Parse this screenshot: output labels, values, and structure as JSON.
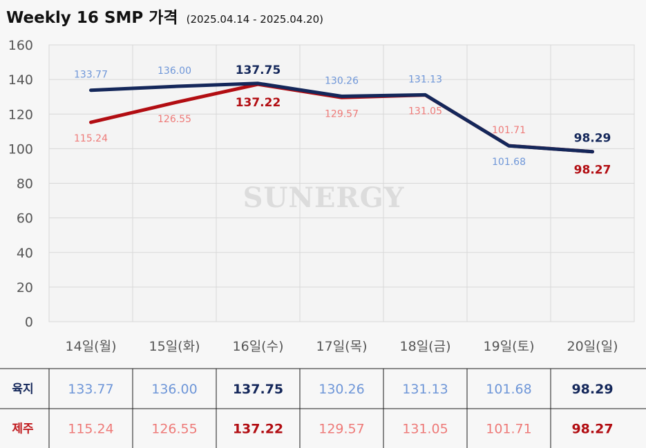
{
  "title": "Weekly 16 SMP 가격",
  "subtitle": "(2025.04.14 - 2025.04.20)",
  "watermark": "SUNERGY",
  "colors": {
    "land_line": "#14275a",
    "jeju_line": "#b20d12",
    "land_light": "#6e96d8",
    "jeju_light": "#ee7a78",
    "land_bold": "#14275a",
    "jeju_bold": "#b20d12",
    "land_label": "#14275a",
    "jeju_label": "#c0181c"
  },
  "chart_data": {
    "type": "line",
    "categories": [
      "14일(월)",
      "15일(화)",
      "16일(수)",
      "17일(목)",
      "18일(금)",
      "19일(토)",
      "20일(일)"
    ],
    "ylim": [
      0,
      160
    ],
    "yticks": [
      0,
      20,
      40,
      60,
      80,
      100,
      120,
      140,
      160
    ],
    "grid": true,
    "series": [
      {
        "key": "land",
        "name": "육지",
        "values": [
          133.77,
          136.0,
          137.75,
          130.26,
          131.13,
          101.68,
          98.29
        ],
        "labels": [
          "133.77",
          "136.00",
          "137.75",
          "130.26",
          "131.13",
          "101.68",
          "98.29"
        ],
        "bold": [
          false,
          false,
          true,
          false,
          false,
          false,
          true
        ]
      },
      {
        "key": "jeju",
        "name": "제주",
        "values": [
          115.24,
          126.55,
          137.22,
          129.57,
          131.05,
          101.71,
          98.27
        ],
        "labels": [
          "115.24",
          "126.55",
          "137.22",
          "129.57",
          "131.05",
          "101.71",
          "98.27"
        ],
        "bold": [
          false,
          false,
          true,
          false,
          false,
          false,
          true
        ]
      }
    ]
  }
}
